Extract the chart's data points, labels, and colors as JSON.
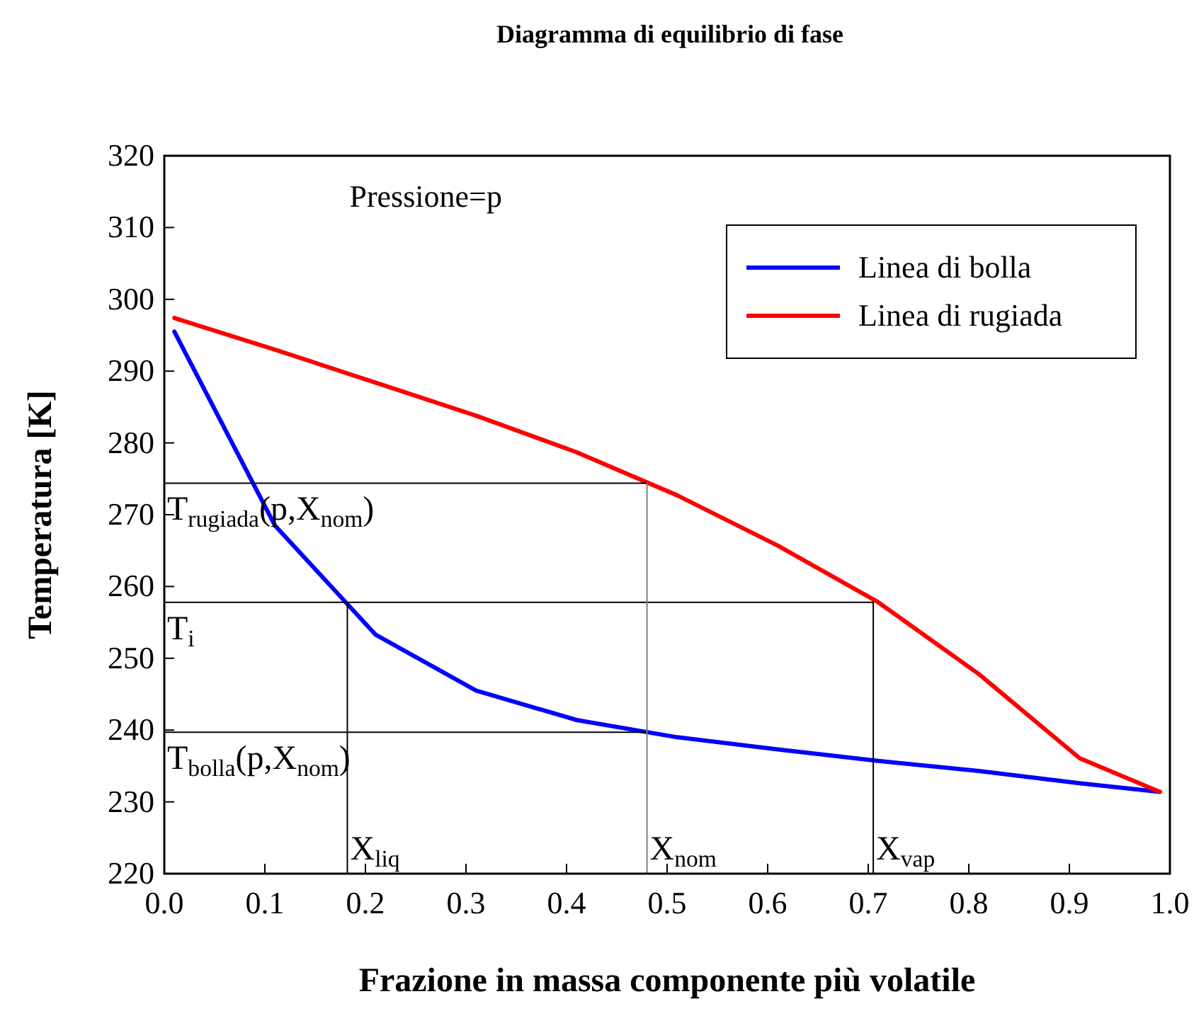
{
  "chart_data": {
    "type": "line",
    "title": "Diagramma di equilibrio di fase",
    "xlabel": "Frazione in massa componente più volatile",
    "ylabel": "Temperatura [K]",
    "xlim": [
      0,
      1
    ],
    "ylim": [
      220,
      320
    ],
    "xticks": [
      {
        "value": 0,
        "label": "0.0"
      },
      0.1,
      0.2,
      0.3,
      0.4,
      0.5,
      0.6,
      0.7,
      0.8,
      0.9,
      {
        "value": 1,
        "label": "1.0"
      }
    ],
    "yticks": [
      220,
      230,
      240,
      250,
      260,
      270,
      280,
      290,
      300,
      310,
      320
    ],
    "legend": "top right",
    "grid": false,
    "marker": "none",
    "line_style": "solid",
    "series": [
      {
        "name": "Linea di bolla",
        "color": "#0000ff",
        "x": [
          0.01,
          0.11,
          0.21,
          0.31,
          0.41,
          0.51,
          0.61,
          0.71,
          0.81,
          0.91,
          0.99
        ],
        "values": [
          295.5,
          268.5,
          253.3,
          245.5,
          241.4,
          239,
          237.3,
          235.7,
          234.3,
          232.6,
          231.4
        ]
      },
      {
        "name": "Linea di rugiada",
        "color": "#ff0000",
        "x": [
          0.01,
          0.11,
          0.21,
          0.31,
          0.41,
          0.51,
          0.61,
          0.71,
          0.81,
          0.91,
          0.99
        ],
        "values": [
          297.4,
          293,
          288.4,
          283.8,
          278.7,
          272.7,
          265.7,
          257.8,
          247.8,
          236.1,
          231.4
        ]
      },
      {
        "color": "#000000",
        "x": [
          0,
          0.705,
          0.705
        ],
        "values": [
          257.8,
          257.8,
          220
        ]
      },
      {
        "color": "#000000",
        "x": [
          0,
          0.48
        ],
        "values": [
          274.4,
          274.4
        ]
      },
      {
        "color": "#000000",
        "x": [
          0,
          0.48
        ],
        "values": [
          239.7,
          239.7
        ]
      },
      {
        "color": "#808080",
        "x": [
          0.48,
          0.48
        ],
        "values": [
          274.4,
          220
        ]
      },
      {
        "color": "#000000",
        "x": [
          0.182,
          0.182
        ],
        "values": [
          257.8,
          220
        ]
      }
    ],
    "annotations": [
      "Pressione=p",
      {
        "text": "T$_{rugiada}$(p,X$_{nom}$)",
        "x": 0,
        "y": 274.4
      },
      {
        "text": "T$_{i}$",
        "x": 0,
        "y": 257.8
      },
      {
        "text": "T$_{bolla}$(p,X$_{nom}$)",
        "x": 0,
        "y": 239.7
      },
      {
        "text": "X$_{liq}$",
        "x": 0.182,
        "y": 220
      },
      {
        "text": "X$_{nom}$",
        "x": 0.48,
        "y": 220
      },
      {
        "text": "X$_{vap}$",
        "x": 0.705,
        "y": 220
      }
    ]
  }
}
